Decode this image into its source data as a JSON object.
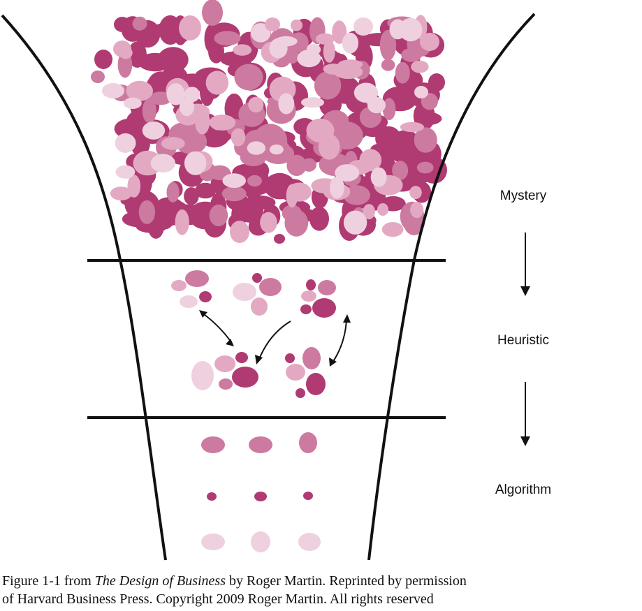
{
  "stages": [
    {
      "label": "Mystery"
    },
    {
      "label": "Heuristic"
    },
    {
      "label": "Algorithm"
    }
  ],
  "colors": {
    "line": "#111111",
    "dark_blob": "#b03a72",
    "medium_blob": "#cc7aa0",
    "light_blob": "#e3a9c3",
    "pale_blob": "#efd0de"
  },
  "caption": {
    "prefix": "Figure 1-1 from ",
    "book_title": "The Design of Business",
    "line1_suffix": " by Roger Martin. Reprinted by permission",
    "line2": "of Harvard Business Press. Copyright 2009 Roger Martin. All rights reserved"
  }
}
